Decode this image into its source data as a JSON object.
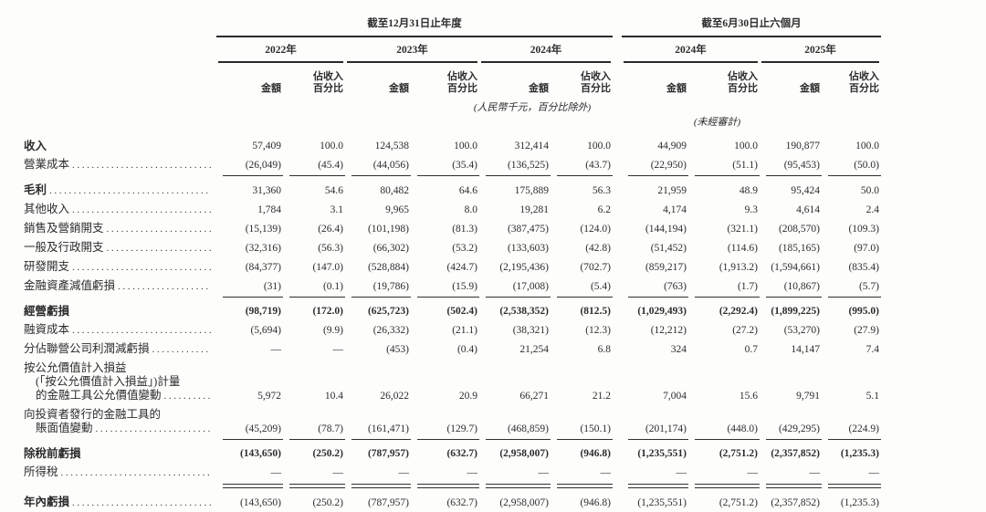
{
  "doc": {
    "language": "zh-HK",
    "currency_note": "(人民幣千元，百分比除外)",
    "unaudited_note": "(未經審計)"
  },
  "header": {
    "period_groups": [
      {
        "label": "截至12月31日止年度"
      },
      {
        "label": "截至6月30日止六個月"
      }
    ],
    "year_columns": [
      {
        "label": "2022年"
      },
      {
        "label": "2023年"
      },
      {
        "label": "2024年"
      },
      {
        "label": "2024年"
      },
      {
        "label": "2025年"
      }
    ],
    "amount_label": "金額",
    "pct_label_line1": "佔收入",
    "pct_label_line2": "百分比"
  },
  "rows": [
    {
      "id": "revenue",
      "label_bold": true,
      "value_bold": false,
      "rule_below": "none",
      "label_lines": [
        {
          "text": "收入",
          "indent": 0,
          "leader": false
        }
      ],
      "values": [
        "57,409",
        "100.0",
        "124,538",
        "100.0",
        "312,414",
        "100.0",
        "44,909",
        "100.0",
        "190,877",
        "100.0"
      ]
    },
    {
      "id": "cost-of-sales",
      "label_bold": false,
      "value_bold": false,
      "rule_below": "single",
      "label_lines": [
        {
          "text": "營業成本",
          "indent": 0,
          "leader": true
        }
      ],
      "values": [
        "(26,049)",
        "(45.4)",
        "(44,056)",
        "(35.4)",
        "(136,525)",
        "(43.7)",
        "(22,950)",
        "(51.1)",
        "(95,453)",
        "(50.0)"
      ]
    },
    {
      "id": "gross-profit",
      "label_bold": true,
      "value_bold": false,
      "rule_below": "none",
      "label_lines": [
        {
          "text": "毛利",
          "indent": 0,
          "leader": true
        }
      ],
      "values": [
        "31,360",
        "54.6",
        "80,482",
        "64.6",
        "175,889",
        "56.3",
        "21,959",
        "48.9",
        "95,424",
        "50.0"
      ]
    },
    {
      "id": "other-income",
      "label_bold": false,
      "value_bold": false,
      "rule_below": "none",
      "label_lines": [
        {
          "text": "其他收入",
          "indent": 0,
          "leader": true
        }
      ],
      "values": [
        "1,784",
        "3.1",
        "9,965",
        "8.0",
        "19,281",
        "6.2",
        "4,174",
        "9.3",
        "4,614",
        "2.4"
      ]
    },
    {
      "id": "selling-marketing-expenses",
      "label_bold": false,
      "value_bold": false,
      "rule_below": "none",
      "label_lines": [
        {
          "text": "銷售及營銷開支",
          "indent": 0,
          "leader": true
        }
      ],
      "values": [
        "(15,139)",
        "(26.4)",
        "(101,198)",
        "(81.3)",
        "(387,475)",
        "(124.0)",
        "(144,194)",
        "(321.1)",
        "(208,570)",
        "(109.3)"
      ]
    },
    {
      "id": "general-admin-expenses",
      "label_bold": false,
      "value_bold": false,
      "rule_below": "none",
      "label_lines": [
        {
          "text": "一般及行政開支",
          "indent": 0,
          "leader": true
        }
      ],
      "values": [
        "(32,316)",
        "(56.3)",
        "(66,302)",
        "(53.2)",
        "(133,603)",
        "(42.8)",
        "(51,452)",
        "(114.6)",
        "(185,165)",
        "(97.0)"
      ]
    },
    {
      "id": "rd-expenses",
      "label_bold": false,
      "value_bold": false,
      "rule_below": "none",
      "label_lines": [
        {
          "text": "研發開支",
          "indent": 0,
          "leader": true
        }
      ],
      "values": [
        "(84,377)",
        "(147.0)",
        "(528,884)",
        "(424.7)",
        "(2,195,436)",
        "(702.7)",
        "(859,217)",
        "(1,913.2)",
        "(1,594,661)",
        "(835.4)"
      ]
    },
    {
      "id": "impairment-financial-assets",
      "label_bold": false,
      "value_bold": false,
      "rule_below": "single",
      "label_lines": [
        {
          "text": "金融資產減值虧損",
          "indent": 0,
          "leader": true
        }
      ],
      "values": [
        "(31)",
        "(0.1)",
        "(19,786)",
        "(15.9)",
        "(17,008)",
        "(5.4)",
        "(763)",
        "(1.7)",
        "(10,867)",
        "(5.7)"
      ]
    },
    {
      "id": "operating-loss",
      "label_bold": true,
      "value_bold": true,
      "rule_below": "none",
      "label_lines": [
        {
          "text": "經營虧損",
          "indent": 0,
          "leader": false
        }
      ],
      "values": [
        "(98,719)",
        "(172.0)",
        "(625,723)",
        "(502.4)",
        "(2,538,352)",
        "(812.5)",
        "(1,029,493)",
        "(2,292.4)",
        "(1,899,225)",
        "(995.0)"
      ]
    },
    {
      "id": "finance-costs",
      "label_bold": false,
      "value_bold": false,
      "rule_below": "none",
      "label_lines": [
        {
          "text": "融資成本",
          "indent": 0,
          "leader": true
        }
      ],
      "values": [
        "(5,694)",
        "(9.9)",
        "(26,332)",
        "(21.1)",
        "(38,321)",
        "(12.3)",
        "(12,212)",
        "(27.2)",
        "(53,270)",
        "(27.9)"
      ]
    },
    {
      "id": "share-of-associates",
      "label_bold": false,
      "value_bold": false,
      "rule_below": "none",
      "label_lines": [
        {
          "text": "分佔聯營公司利潤減虧損",
          "indent": 0,
          "leader": true
        }
      ],
      "values": [
        "—",
        "—",
        "(453)",
        "(0.4)",
        "21,254",
        "6.8",
        "324",
        "0.7",
        "14,147",
        "7.4"
      ]
    },
    {
      "id": "fvtpl-fair-value-changes",
      "label_bold": false,
      "value_bold": false,
      "rule_below": "none",
      "label_lines": [
        {
          "text": "按公允價值計入損益",
          "indent": 0,
          "leader": false
        },
        {
          "text": "(「按公允價值計入損益」)計量",
          "indent": 1,
          "leader": false
        },
        {
          "text": "的金融工具公允價值變動",
          "indent": 1,
          "leader": true
        }
      ],
      "values": [
        "5,972",
        "10.4",
        "26,022",
        "20.9",
        "66,271",
        "21.2",
        "7,004",
        "15.6",
        "9,791",
        "5.1"
      ]
    },
    {
      "id": "instruments-issued-to-investors",
      "label_bold": false,
      "value_bold": false,
      "rule_below": "single",
      "label_lines": [
        {
          "text": "向投資者發行的金融工具的",
          "indent": 0,
          "leader": false
        },
        {
          "text": "賬面值變動",
          "indent": 1,
          "leader": true
        }
      ],
      "values": [
        "(45,209)",
        "(78.7)",
        "(161,471)",
        "(129.7)",
        "(468,859)",
        "(150.1)",
        "(201,174)",
        "(448.0)",
        "(429,295)",
        "(224.9)"
      ]
    },
    {
      "id": "loss-before-tax",
      "label_bold": true,
      "value_bold": true,
      "rule_below": "none",
      "label_lines": [
        {
          "text": "除稅前虧損",
          "indent": 0,
          "leader": false
        }
      ],
      "values": [
        "(143,650)",
        "(250.2)",
        "(787,957)",
        "(632.7)",
        "(2,958,007)",
        "(946.8)",
        "(1,235,551)",
        "(2,751.2)",
        "(2,357,852)",
        "(1,235.3)"
      ]
    },
    {
      "id": "income-tax",
      "label_bold": false,
      "value_bold": false,
      "rule_below": "double",
      "label_lines": [
        {
          "text": "所得稅",
          "indent": 0,
          "leader": true
        }
      ],
      "values": [
        "—",
        "—",
        "—",
        "—",
        "—",
        "—",
        "—",
        "—",
        "—",
        "—"
      ]
    },
    {
      "id": "loss-for-the-year",
      "label_bold": true,
      "value_bold": false,
      "rule_below": "double",
      "label_lines": [
        {
          "text": "年內虧損",
          "indent": 0,
          "leader": true
        }
      ],
      "values": [
        "(143,650)",
        "(250.2)",
        "(787,957)",
        "(632.7)",
        "(2,958,007)",
        "(946.8)",
        "(1,235,551)",
        "(2,751.2)",
        "(2,357,852)",
        "(1,235.3)"
      ]
    }
  ]
}
